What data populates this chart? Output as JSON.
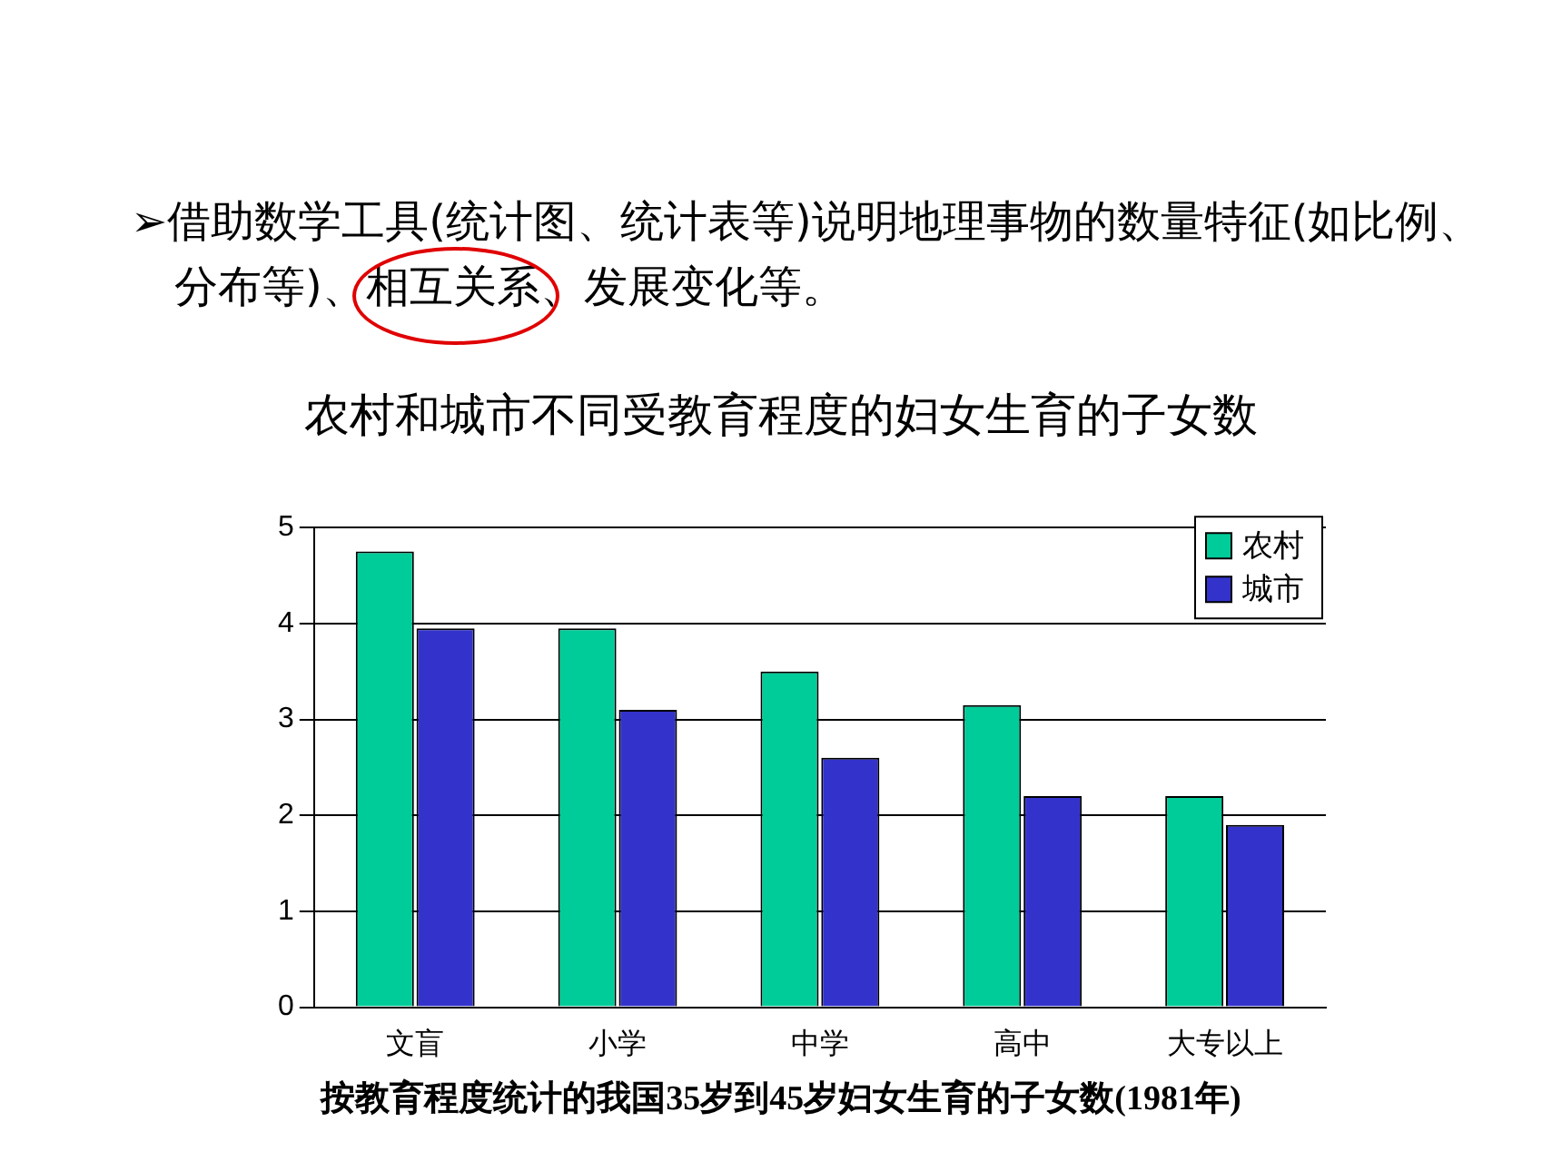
{
  "chart_data": {
    "type": "bar",
    "title": "农村和城市不同受教育程度的妇女生育的子女数",
    "annotations": [
      "➢借助数学工具(统计图、统计表等)说明地理事物的数量特征(如比例、分布等)、相互关系、发展变化等。",
      "按教育程度统计的我国35岁到45岁妇女生育的子女数(1981年)"
    ],
    "categories": [
      "文盲",
      "小学",
      "中学",
      "高中",
      "大专以上"
    ],
    "series": [
      {
        "name": "农村",
        "color": "#00cc99",
        "values": [
          4.75,
          3.95,
          3.5,
          3.15,
          2.2
        ]
      },
      {
        "name": "城市",
        "color": "#3333cc",
        "values": [
          3.95,
          3.1,
          2.6,
          2.2,
          1.9
        ]
      }
    ],
    "ylim": [
      0,
      5
    ],
    "yticks": [
      0,
      1,
      2,
      3,
      4,
      5
    ],
    "grid": "y",
    "legend": "top right"
  }
}
